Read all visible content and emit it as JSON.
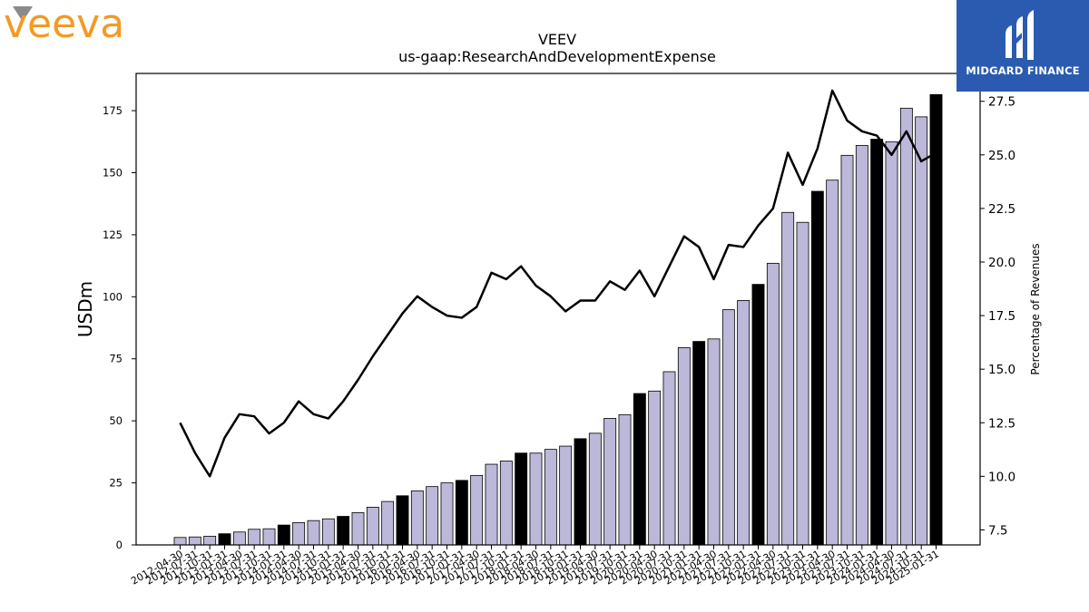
{
  "logos": {
    "left_text": "veeva",
    "right_text": "MIDGARD FINANCE"
  },
  "colors": {
    "bar_light": "#bcb8d9",
    "bar_dark": "#000000",
    "line": "#000000",
    "veeva_orange": "#f39a23",
    "veeva_gray": "#8a8a8a",
    "midgard_blue": "#2b5bb0"
  },
  "chart_data": {
    "type": "bar",
    "title": "VEEV",
    "subtitle": "us-gaap:ResearchAndDevelopmentExpense",
    "ylabel": "USDm",
    "y2label": "Percentage of Revenues",
    "ylim": [
      0,
      190
    ],
    "y2lim": [
      6.8,
      28.8
    ],
    "yticks": [
      0,
      25,
      50,
      75,
      100,
      125,
      150,
      175
    ],
    "y2ticks": [
      "7.5",
      "10.0",
      "12.5",
      "15.0",
      "17.5",
      "20.0",
      "22.5",
      "25.0",
      "27.5"
    ],
    "categories": [
      "2012-04-30",
      "2012-07-31",
      "2012-10-31",
      "2013-01-31",
      "2013-04-30",
      "2013-07-31",
      "2013-10-31",
      "2014-01-31",
      "2014-04-30",
      "2014-07-31",
      "2014-10-31",
      "2015-01-31",
      "2015-04-30",
      "2015-07-31",
      "2015-10-31",
      "2016-01-31",
      "2016-04-30",
      "2016-07-31",
      "2016-10-31",
      "2017-01-31",
      "2017-04-30",
      "2017-07-31",
      "2017-10-31",
      "2018-01-31",
      "2018-04-30",
      "2018-07-31",
      "2018-10-31",
      "2019-01-31",
      "2019-04-30",
      "2019-07-31",
      "2019-10-31",
      "2020-01-31",
      "2020-04-30",
      "2020-07-31",
      "2020-10-31",
      "2021-01-31",
      "2021-04-30",
      "2021-07-31",
      "2021-10-31",
      "2022-01-31",
      "2022-04-30",
      "2022-07-31",
      "2022-10-31",
      "2023-01-31",
      "2023-04-30",
      "2023-07-31",
      "2023-10-31",
      "2024-01-31",
      "2024-04-30",
      "2024-07-31",
      "2024-10-31",
      "2025-01-31"
    ],
    "series": [
      {
        "kind": "bar",
        "axis": "left",
        "values": [
          3.0,
          3.2,
          3.5,
          4.5,
          5.2,
          6.3,
          6.5,
          8.0,
          9.0,
          9.8,
          10.5,
          11.5,
          13.0,
          15.2,
          17.5,
          19.8,
          21.8,
          23.5,
          25.0,
          26.0,
          28.0,
          32.5,
          33.8,
          37.0,
          37.0,
          38.5,
          39.8,
          42.8,
          45.0,
          51.0,
          52.5,
          61.0,
          62.0,
          69.8,
          79.5,
          82.0,
          83.0,
          94.8,
          98.5,
          105.0,
          113.5,
          134.0,
          130.0,
          142.5,
          147.0,
          157.0,
          161.0,
          163.5,
          162.5,
          176.0,
          172.5,
          181.5
        ],
        "dark_flags": [
          0,
          0,
          0,
          1,
          0,
          0,
          0,
          1,
          0,
          0,
          0,
          1,
          0,
          0,
          0,
          1,
          0,
          0,
          0,
          1,
          0,
          0,
          0,
          1,
          0,
          0,
          0,
          1,
          0,
          0,
          0,
          1,
          0,
          0,
          0,
          1,
          0,
          0,
          0,
          1,
          0,
          0,
          0,
          1,
          0,
          0,
          0,
          1,
          0,
          0,
          0,
          1
        ]
      },
      {
        "kind": "line",
        "axis": "right",
        "values": [
          12.5,
          11.1,
          10.0,
          11.8,
          12.9,
          12.8,
          12.0,
          12.5,
          13.5,
          12.9,
          12.7,
          13.5,
          14.5,
          15.6,
          16.6,
          17.6,
          18.4,
          17.9,
          17.5,
          17.4,
          17.9,
          19.5,
          19.2,
          19.8,
          18.9,
          18.4,
          17.7,
          18.2,
          18.2,
          19.1,
          18.7,
          19.6,
          18.4,
          19.8,
          21.2,
          20.7,
          19.2,
          20.8,
          20.7,
          21.7,
          22.5,
          25.1,
          23.6,
          25.3,
          28.0,
          26.6,
          26.1,
          25.9,
          25.0,
          26.1,
          24.7,
          25.1
        ]
      }
    ]
  }
}
